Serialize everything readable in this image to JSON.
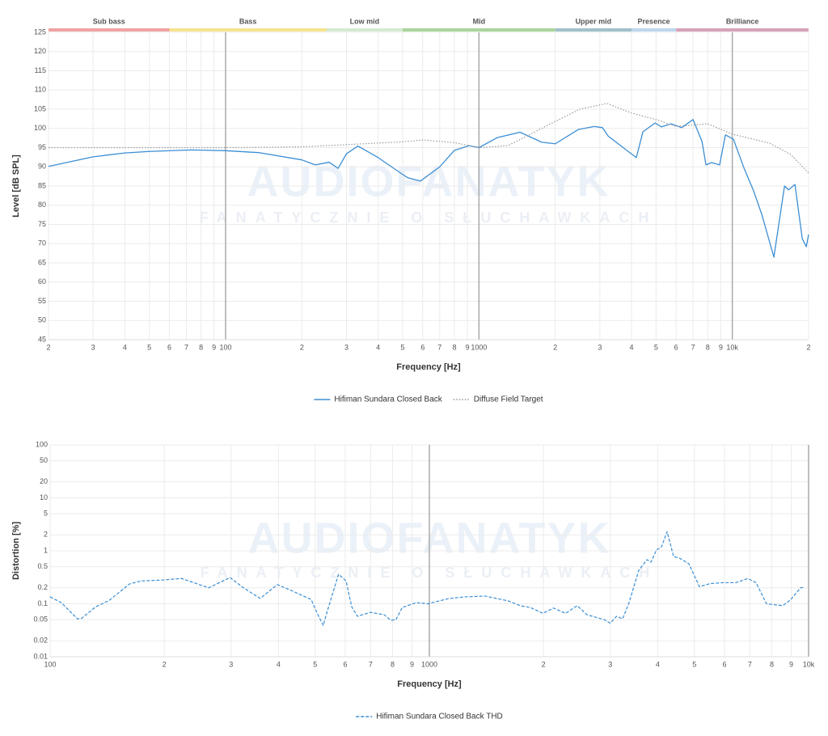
{
  "watermark": {
    "title": "AUDIOFANATYK",
    "subtitle": "FANATYCZNIE O SŁUCHAWKACH"
  },
  "chart_data": [
    {
      "type": "line",
      "xlog": true,
      "ylog": false,
      "grid": true,
      "xlabel": "Frequency [Hz]",
      "ylabel": "Level [dB SPL]",
      "xlim": [
        20,
        20000
      ],
      "ylim": [
        45,
        125
      ],
      "xticks": [
        {
          "value": 20,
          "label": "2"
        },
        {
          "value": 30,
          "label": "3"
        },
        {
          "value": 40,
          "label": "4"
        },
        {
          "value": 50,
          "label": "5"
        },
        {
          "value": 60,
          "label": "6"
        },
        {
          "value": 70,
          "label": "7"
        },
        {
          "value": 80,
          "label": "8"
        },
        {
          "value": 90,
          "label": "9"
        },
        100,
        {
          "value": 200,
          "label": "2"
        },
        {
          "value": 300,
          "label": "3"
        },
        {
          "value": 400,
          "label": "4"
        },
        {
          "value": 500,
          "label": "5"
        },
        {
          "value": 600,
          "label": "6"
        },
        {
          "value": 700,
          "label": "7"
        },
        {
          "value": 800,
          "label": "8"
        },
        {
          "value": 900,
          "label": "9"
        },
        1000,
        {
          "value": 2000,
          "label": "2"
        },
        {
          "value": 3000,
          "label": "3"
        },
        {
          "value": 4000,
          "label": "4"
        },
        {
          "value": 5000,
          "label": "5"
        },
        {
          "value": 6000,
          "label": "6"
        },
        {
          "value": 7000,
          "label": "7"
        },
        {
          "value": 8000,
          "label": "8"
        },
        {
          "value": 9000,
          "label": "9"
        },
        {
          "value": 10000,
          "label": "10k"
        },
        {
          "value": 20000,
          "label": "2"
        }
      ],
      "yticks": [
        45,
        50,
        55,
        60,
        65,
        70,
        75,
        80,
        85,
        90,
        95,
        100,
        105,
        110,
        115,
        120,
        125
      ],
      "bands": [
        {
          "name": "Sub bass",
          "start": 20,
          "end": 60,
          "color": "#f0a3a3"
        },
        {
          "name": "Bass",
          "start": 60,
          "end": 250,
          "color": "#f6e38e"
        },
        {
          "name": "Low mid",
          "start": 250,
          "end": 500,
          "color": "#d6e9d0"
        },
        {
          "name": "Mid",
          "start": 500,
          "end": 2000,
          "color": "#aad59c"
        },
        {
          "name": "Upper mid",
          "start": 2000,
          "end": 4000,
          "color": "#9fc0c9"
        },
        {
          "name": "Presence",
          "start": 4000,
          "end": 6000,
          "color": "#bed7ed"
        },
        {
          "name": "Brilliance",
          "start": 6000,
          "end": 20000,
          "color": "#d8a2b9"
        }
      ],
      "series": [
        {
          "name": "Hifiman Sundara Closed Back",
          "color": "#3b8ed4",
          "dash": "solid",
          "x": [
            20,
            30,
            40,
            50,
            73,
            100,
            135,
            200,
            226,
            256,
            278,
            300,
            333,
            400,
            500,
            526,
            588,
            700,
            800,
            914,
            1000,
            1181,
            1452,
            1770,
            2000,
            2466,
            2853,
            3071,
            3236,
            3830,
            4180,
            4436,
            4955,
            5250,
            5740,
            6310,
            7000,
            7590,
            7870,
            8280,
            8910,
            9390,
            10100,
            11100,
            12140,
            13070,
            14590,
            16070,
            16670,
            17670,
            18880,
            19590,
            20000
          ],
          "values": [
            90.1,
            92.6,
            93.6,
            94,
            94.4,
            94.2,
            93.7,
            91.8,
            90.5,
            91.2,
            89.6,
            93.4,
            95.4,
            92.4,
            88,
            87.1,
            86.3,
            90,
            94.3,
            95.5,
            95,
            97.6,
            99,
            96.4,
            96,
            99.7,
            100.5,
            100.2,
            98,
            94.3,
            92.4,
            99.1,
            101.4,
            100.4,
            101.2,
            100.2,
            102.3,
            96.6,
            90.5,
            91.1,
            90.5,
            98.3,
            97.2,
            89.8,
            83.7,
            77.6,
            66.5,
            85,
            84,
            85.4,
            71.3,
            69.2,
            72.4
          ]
        },
        {
          "name": "Diffuse Field Target",
          "color": "#9a9a9a",
          "dash": "dotted",
          "x": [
            20,
            50,
            100,
            200,
            500,
            600,
            800,
            1000,
            1300,
            2000,
            2500,
            3200,
            4000,
            5000,
            6000,
            8000,
            10000,
            14000,
            17000,
            20000
          ],
          "values": [
            95,
            95,
            95,
            95.2,
            96.5,
            97,
            96.3,
            95,
            95.5,
            101.8,
            105,
            106.5,
            104,
            102.3,
            100.5,
            101.2,
            98.5,
            96.2,
            93.2,
            88.4
          ]
        }
      ]
    },
    {
      "type": "line",
      "xlog": true,
      "ylog": true,
      "grid": true,
      "xlabel": "Frequency [Hz]",
      "ylabel": "Distortion [%]",
      "xlim": [
        100,
        10000
      ],
      "ylim": [
        0.01,
        100
      ],
      "xticks": [
        100,
        {
          "value": 200,
          "label": "2"
        },
        {
          "value": 300,
          "label": "3"
        },
        {
          "value": 400,
          "label": "4"
        },
        {
          "value": 500,
          "label": "5"
        },
        {
          "value": 600,
          "label": "6"
        },
        {
          "value": 700,
          "label": "7"
        },
        {
          "value": 800,
          "label": "8"
        },
        {
          "value": 900,
          "label": "9"
        },
        1000,
        {
          "value": 2000,
          "label": "2"
        },
        {
          "value": 3000,
          "label": "3"
        },
        {
          "value": 4000,
          "label": "4"
        },
        {
          "value": 5000,
          "label": "5"
        },
        {
          "value": 6000,
          "label": "6"
        },
        {
          "value": 7000,
          "label": "7"
        },
        {
          "value": 8000,
          "label": "8"
        },
        {
          "value": 9000,
          "label": "9"
        },
        {
          "value": 10000,
          "label": "10k"
        }
      ],
      "yticks": [
        0.01,
        0.02,
        0.05,
        0.1,
        0.2,
        0.5,
        1,
        2,
        5,
        10,
        20,
        50,
        100
      ],
      "series": [
        {
          "name": "Hifiman Sundara Closed Back THD",
          "color": "#3b8ed4",
          "dash": "dashed",
          "x": [
            100,
            107,
            118,
            121,
            132,
            143,
            162,
            174,
            197,
            222,
            262,
            298,
            322,
            358,
            397,
            431,
            488,
            506,
            525,
            538,
            576,
            603,
            624,
            646,
            699,
            760,
            790,
            816,
            848,
            923,
            990,
            1123,
            1240,
            1400,
            1617,
            1736,
            1846,
            1993,
            2125,
            2288,
            2454,
            2605,
            2894,
            2999,
            3116,
            3233,
            3362,
            3567,
            3748,
            3840,
            3973,
            4092,
            4236,
            4405,
            4561,
            4833,
            5154,
            5495,
            5915,
            6427,
            6918,
            7267,
            7745,
            8551,
            8977,
            9524,
            9757
          ],
          "values": [
            0.135,
            0.105,
            0.052,
            0.053,
            0.088,
            0.115,
            0.237,
            0.27,
            0.28,
            0.3,
            0.2,
            0.313,
            0.205,
            0.126,
            0.23,
            0.18,
            0.12,
            0.066,
            0.039,
            0.072,
            0.36,
            0.27,
            0.088,
            0.058,
            0.069,
            0.062,
            0.049,
            0.05,
            0.085,
            0.105,
            0.1,
            0.125,
            0.135,
            0.14,
            0.113,
            0.092,
            0.085,
            0.066,
            0.083,
            0.066,
            0.092,
            0.062,
            0.05,
            0.043,
            0.058,
            0.052,
            0.105,
            0.43,
            0.68,
            0.61,
            1.04,
            1.18,
            2.3,
            0.78,
            0.73,
            0.57,
            0.21,
            0.24,
            0.25,
            0.25,
            0.3,
            0.25,
            0.1,
            0.092,
            0.12,
            0.2,
            0.205
          ]
        }
      ]
    }
  ]
}
